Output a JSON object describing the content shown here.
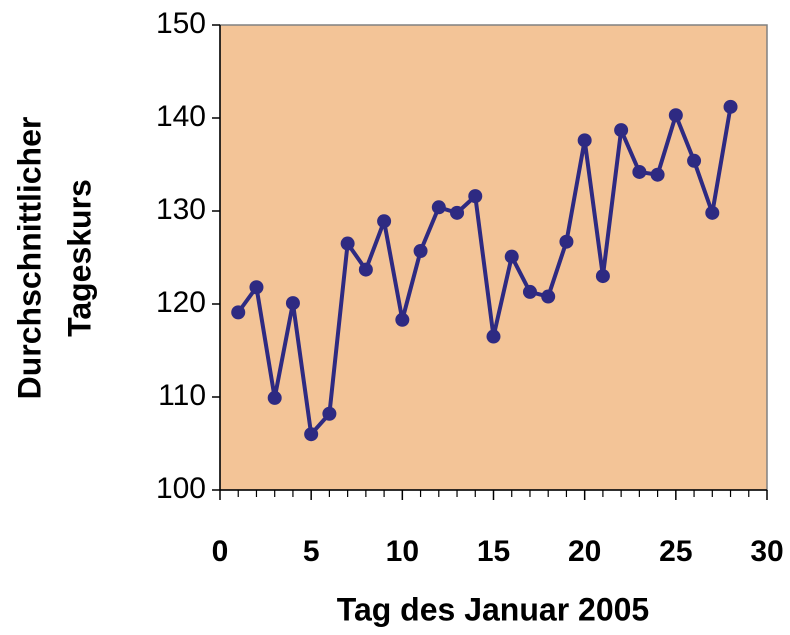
{
  "chart_data": {
    "type": "line",
    "xlabel": "Tag des Januar 2005",
    "ylabel": [
      "Durchschnittlicher",
      "Tageskurs"
    ],
    "x": [
      1,
      2,
      3,
      4,
      5,
      6,
      7,
      8,
      9,
      10,
      11,
      12,
      13,
      14,
      15,
      16,
      17,
      18,
      19,
      20,
      21,
      22,
      23,
      24,
      25,
      26,
      27,
      28
    ],
    "series": [
      {
        "name": "Tageskurs",
        "color": "#2e2a82",
        "values": [
          119.1,
          121.8,
          109.9,
          120.1,
          106.0,
          108.2,
          126.5,
          123.7,
          128.9,
          118.3,
          125.7,
          130.4,
          129.8,
          131.6,
          116.5,
          125.1,
          121.3,
          120.8,
          126.7,
          137.6,
          123.0,
          138.7,
          134.2,
          133.9,
          140.3,
          135.4,
          129.8,
          141.2
        ]
      }
    ],
    "xlim": [
      0,
      30
    ],
    "xticks": [
      0,
      5,
      10,
      15,
      20,
      25,
      30
    ],
    "xminor_ticks": [
      1,
      2,
      3,
      4,
      6,
      7,
      8,
      9,
      11,
      12,
      13,
      14,
      16,
      17,
      18,
      19,
      21,
      22,
      23,
      24,
      26,
      27,
      28,
      29
    ],
    "ylim": [
      100,
      150
    ],
    "yticks": [
      100,
      110,
      120,
      130,
      140,
      150
    ],
    "background": "#f3c497",
    "grid": false
  }
}
